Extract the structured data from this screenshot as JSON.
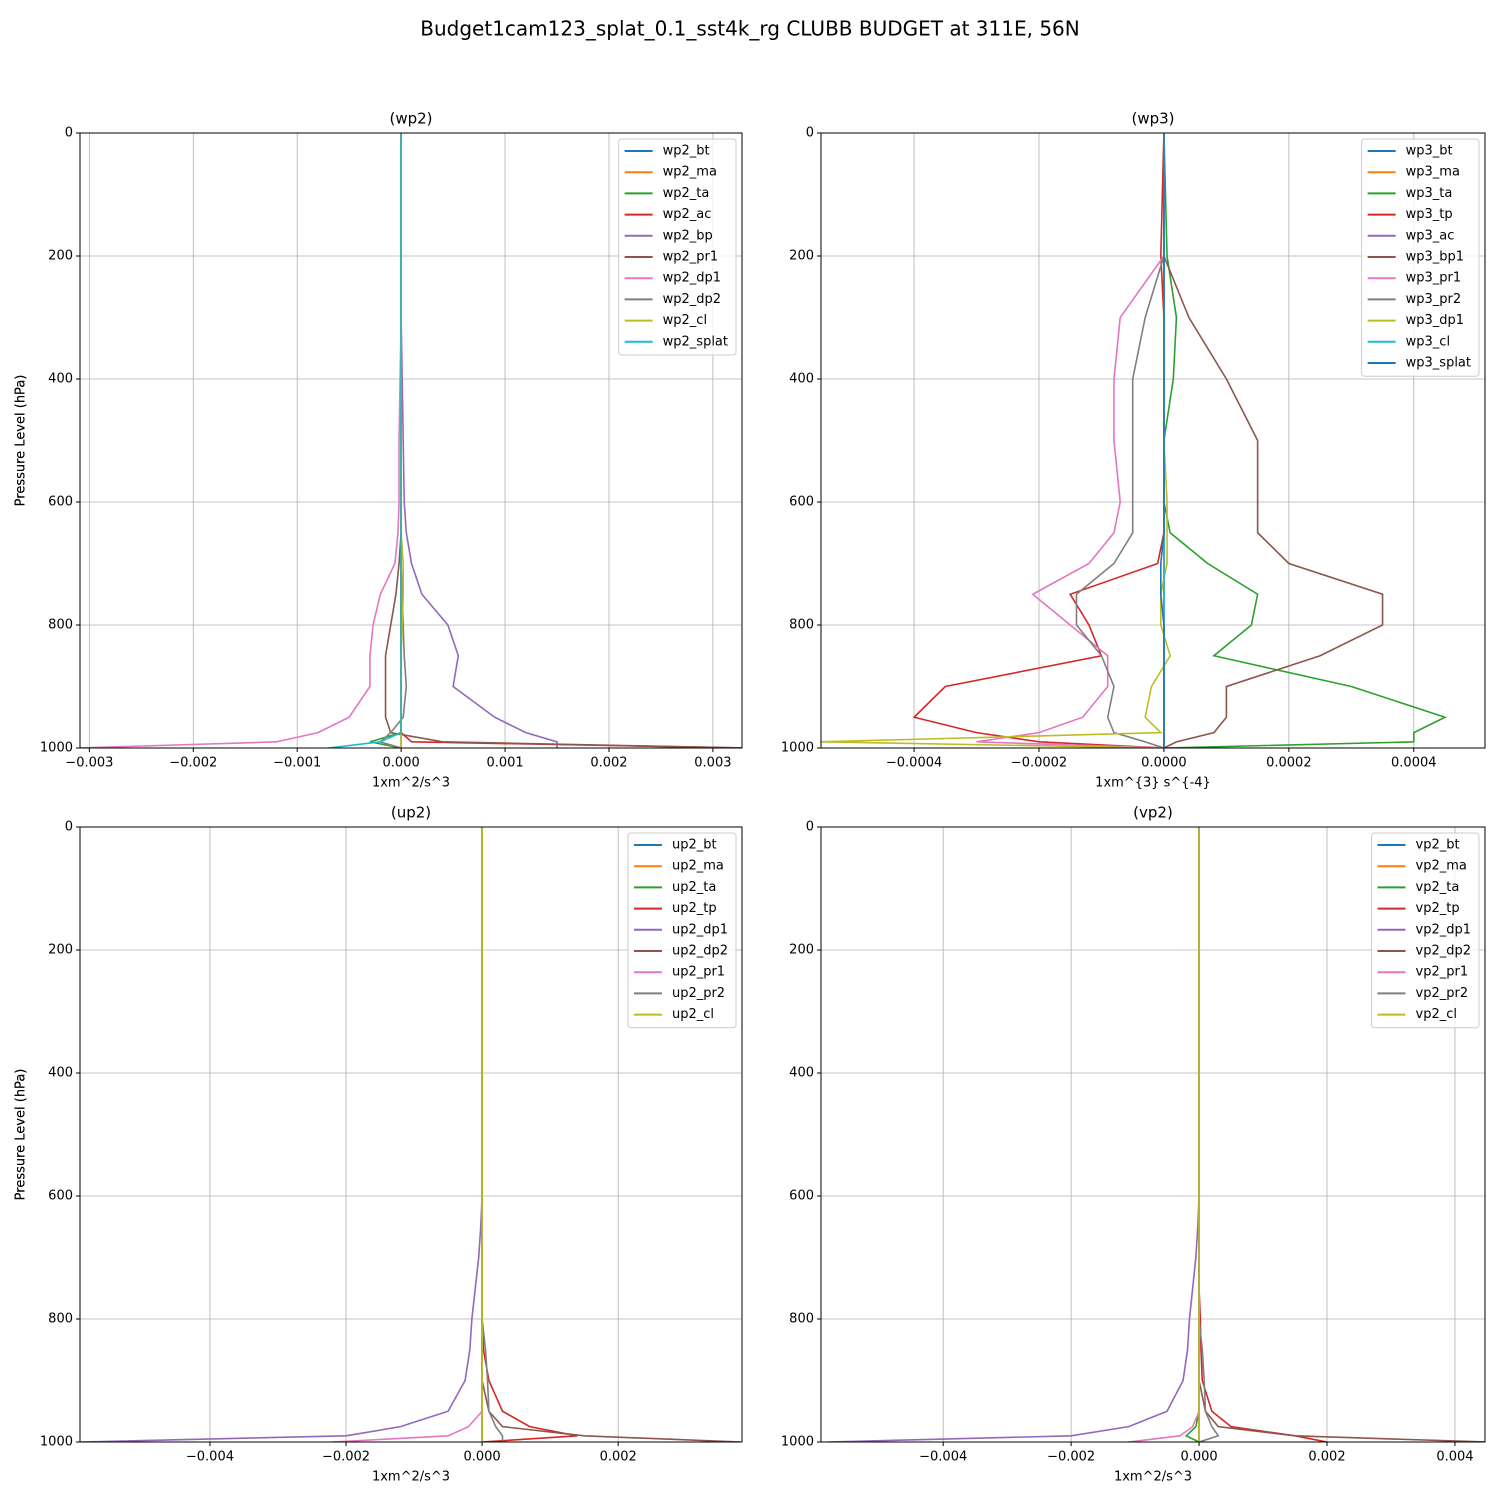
{
  "title": "Budget1cam123_splat_0.1_sst4k_rg CLUBB BUDGET at 311E, 56N",
  "chart_data": [
    {
      "type": "line",
      "title": "(wp2)",
      "xlabel": "1xm^2/s^3",
      "ylabel": "Pressure Level (hPa)",
      "grid": true,
      "legend": "upper right",
      "xlim": [
        -0.00309,
        0.00328
      ],
      "ylim": [
        1000,
        0
      ],
      "xticks": [
        {
          "value": -0.003,
          "label": "−0.003"
        },
        {
          "value": -0.002,
          "label": "−0.002"
        },
        {
          "value": -0.001,
          "label": "−0.001"
        },
        {
          "value": 0,
          "label": "0.000"
        },
        {
          "value": 0.001,
          "label": "0.001"
        },
        {
          "value": 0.002,
          "label": "0.002"
        },
        {
          "value": 0.003,
          "label": "0.003"
        }
      ],
      "yticks": [
        0,
        200,
        400,
        600,
        800,
        1000
      ],
      "y": [
        0,
        200,
        300,
        400,
        500,
        600,
        650,
        700,
        750,
        800,
        850,
        900,
        950,
        975,
        990,
        1000
      ],
      "series": [
        {
          "name": "wp2_bt",
          "color": "#1f77b4",
          "values": [
            0,
            0,
            0,
            0,
            0,
            0,
            0,
            0,
            0,
            0,
            0,
            0,
            0,
            0,
            0,
            0
          ]
        },
        {
          "name": "wp2_ma",
          "color": "#ff7f0e",
          "values": [
            0,
            0,
            0,
            0,
            0,
            0,
            0,
            0,
            0,
            0,
            0,
            0,
            0,
            0,
            0,
            0
          ]
        },
        {
          "name": "wp2_ta",
          "color": "#2ca02c",
          "values": [
            0,
            0,
            0,
            0,
            0,
            0,
            0,
            0,
            0,
            0,
            0,
            0,
            0,
            0,
            -0.0003,
            0
          ]
        },
        {
          "name": "wp2_ac",
          "color": "#d62728",
          "values": [
            0,
            0,
            0,
            0,
            0,
            0,
            0,
            0,
            0,
            0,
            0,
            0,
            0,
            0,
            0.0001,
            0.0033
          ]
        },
        {
          "name": "wp2_bp",
          "color": "#9467bd",
          "values": [
            0,
            0,
            0,
            1e-05,
            2e-05,
            3e-05,
            5e-05,
            0.0001,
            0.0002,
            0.00045,
            0.00055,
            0.0005,
            0.0009,
            0.0012,
            0.0015,
            0.0015
          ]
        },
        {
          "name": "wp2_pr1",
          "color": "#8c564b",
          "values": [
            0,
            0,
            0,
            0,
            0,
            0,
            0,
            -2e-05,
            -5e-05,
            -0.0001,
            -0.00015,
            -0.00015,
            -0.00015,
            -0.0001,
            0.0004,
            0.0033
          ]
        },
        {
          "name": "wp2_dp1",
          "color": "#e377c2",
          "values": [
            0,
            0,
            0,
            -1e-05,
            -2e-05,
            -2e-05,
            -3e-05,
            -6e-05,
            -0.0002,
            -0.00027,
            -0.0003,
            -0.0003,
            -0.0005,
            -0.0008,
            -0.0012,
            -0.0031
          ]
        },
        {
          "name": "wp2_dp2",
          "color": "#7f7f7f",
          "values": [
            0,
            0,
            0,
            0,
            0,
            0,
            0,
            0,
            1e-05,
            2e-05,
            3e-05,
            5e-05,
            2e-05,
            -0.0001,
            -0.0002,
            0
          ]
        },
        {
          "name": "wp2_cl",
          "color": "#bcbd22",
          "values": [
            0,
            0,
            0,
            0,
            0,
            0,
            0,
            2e-05,
            2e-05,
            1e-05,
            0,
            0,
            0,
            0,
            0,
            0
          ]
        },
        {
          "name": "wp2_splat",
          "color": "#17becf",
          "values": [
            0,
            0,
            0,
            0,
            0,
            0,
            0,
            0,
            0,
            0,
            0,
            0,
            0,
            0,
            -0.0002,
            -0.0007
          ]
        }
      ]
    },
    {
      "type": "line",
      "title": "(wp3)",
      "xlabel": "1xm^{3} s^{-4}",
      "ylabel": "Pressure Level (hPa)",
      "grid": true,
      "legend": "upper right",
      "xlim": [
        -0.000549,
        0.000514
      ],
      "ylim": [
        1000,
        0
      ],
      "xticks": [
        {
          "value": -0.0004,
          "label": "−0.0004"
        },
        {
          "value": -0.0002,
          "label": "−0.0002"
        },
        {
          "value": 0,
          "label": "0.0000"
        },
        {
          "value": 0.0002,
          "label": "0.0002"
        },
        {
          "value": 0.0004,
          "label": "0.0004"
        }
      ],
      "yticks": [
        0,
        200,
        400,
        600,
        800,
        1000
      ],
      "y": [
        0,
        200,
        300,
        400,
        500,
        600,
        650,
        700,
        750,
        800,
        850,
        900,
        950,
        975,
        990,
        1000
      ],
      "series": [
        {
          "name": "wp3_bt",
          "color": "#1f77b4",
          "values": [
            0,
            0,
            0,
            0,
            0,
            0,
            0,
            0,
            0,
            0,
            0,
            0,
            0,
            0,
            0,
            0
          ]
        },
        {
          "name": "wp3_ma",
          "color": "#ff7f0e",
          "values": [
            0,
            0,
            0,
            0,
            0,
            0,
            0,
            0,
            0,
            0,
            0,
            0,
            0,
            0,
            0,
            0
          ]
        },
        {
          "name": "wp3_ta",
          "color": "#2ca02c",
          "values": [
            0,
            5e-06,
            2e-05,
            1.5e-05,
            0,
            0,
            1e-05,
            7e-05,
            0.00015,
            0.00014,
            8e-05,
            0.0003,
            0.00045,
            0.0004,
            0.0004,
            0
          ]
        },
        {
          "name": "wp3_tp",
          "color": "#d62728",
          "values": [
            0,
            -5e-06,
            0,
            0,
            0,
            0,
            0,
            -1e-05,
            -0.00015,
            -0.00012,
            -0.0001,
            -0.00035,
            -0.0004,
            -0.0003,
            -0.0002,
            0
          ]
        },
        {
          "name": "wp3_ac",
          "color": "#9467bd",
          "values": [
            0,
            0,
            0,
            0,
            0,
            0,
            0,
            0,
            0,
            0,
            0,
            0,
            0,
            0,
            0,
            0
          ]
        },
        {
          "name": "wp3_bp1",
          "color": "#8c564b",
          "values": [
            0,
            0,
            4e-05,
            0.0001,
            0.00015,
            0.00015,
            0.00015,
            0.0002,
            0.00035,
            0.00035,
            0.00025,
            0.0001,
            0.0001,
            8e-05,
            2e-05,
            0
          ]
        },
        {
          "name": "wp3_pr1",
          "color": "#e377c2",
          "values": [
            0,
            0,
            -7e-05,
            -8e-05,
            -8e-05,
            -7e-05,
            -8e-05,
            -0.00012,
            -0.00021,
            -0.00015,
            -9e-05,
            -9e-05,
            -0.00013,
            -0.0002,
            -0.0003,
            0
          ]
        },
        {
          "name": "wp3_pr2",
          "color": "#7f7f7f",
          "values": [
            0,
            0,
            -3e-05,
            -5e-05,
            -5e-05,
            -5e-05,
            -5e-05,
            -8e-05,
            -0.00014,
            -0.00014,
            -0.0001,
            -8e-05,
            -9e-05,
            -8e-05,
            -3e-05,
            0
          ]
        },
        {
          "name": "wp3_dp1",
          "color": "#bcbd22",
          "values": [
            0,
            0,
            0,
            0,
            0,
            5e-06,
            5e-06,
            5e-06,
            -5e-06,
            -5e-06,
            1e-05,
            -2e-05,
            -3e-05,
            -5e-06,
            -0.00055,
            0
          ]
        },
        {
          "name": "wp3_cl",
          "color": "#17becf",
          "values": [
            0,
            0,
            0,
            0,
            0,
            0,
            0,
            0,
            0,
            0,
            0,
            0,
            0,
            0,
            0,
            0
          ]
        },
        {
          "name": "wp3_splat",
          "color": "#1f77b4",
          "values": [
            0,
            0,
            0,
            0,
            0,
            0,
            0,
            -5e-06,
            -5e-06,
            0,
            0,
            0,
            0,
            0,
            0,
            0
          ]
        }
      ]
    },
    {
      "type": "line",
      "title": "(up2)",
      "xlabel": "1xm^2/s^3",
      "ylabel": "Pressure Level (hPa)",
      "grid": true,
      "legend": "upper right",
      "xlim": [
        -0.00591,
        0.00382
      ],
      "ylim": [
        1000,
        0
      ],
      "xticks": [
        {
          "value": -0.004,
          "label": "−0.004"
        },
        {
          "value": -0.002,
          "label": "−0.002"
        },
        {
          "value": 0,
          "label": "0.000"
        },
        {
          "value": 0.002,
          "label": "0.002"
        }
      ],
      "yticks": [
        0,
        200,
        400,
        600,
        800,
        1000
      ],
      "y": [
        0,
        200,
        300,
        400,
        500,
        600,
        650,
        700,
        750,
        800,
        850,
        900,
        950,
        975,
        990,
        1000
      ],
      "series": [
        {
          "name": "up2_bt",
          "color": "#1f77b4",
          "values": [
            0,
            0,
            0,
            0,
            0,
            0,
            0,
            0,
            0,
            0,
            0,
            0,
            0,
            0,
            0,
            0
          ]
        },
        {
          "name": "up2_ma",
          "color": "#ff7f0e",
          "values": [
            0,
            0,
            0,
            0,
            0,
            0,
            0,
            0,
            0,
            0,
            0,
            0,
            0,
            0,
            0,
            0
          ]
        },
        {
          "name": "up2_ta",
          "color": "#2ca02c",
          "values": [
            0,
            0,
            0,
            0,
            0,
            0,
            0,
            0,
            0,
            0,
            0,
            0,
            0,
            0,
            0,
            0
          ]
        },
        {
          "name": "up2_tp",
          "color": "#d62728",
          "values": [
            0,
            0,
            0,
            0,
            0,
            0,
            0,
            0,
            0,
            0,
            2e-05,
            0.0001,
            0.0003,
            0.0007,
            0.0014,
            0
          ]
        },
        {
          "name": "up2_dp1",
          "color": "#9467bd",
          "values": [
            0,
            0,
            0,
            0,
            0,
            0,
            -2e-05,
            -5e-05,
            -0.0001,
            -0.00015,
            -0.00018,
            -0.00025,
            -0.0005,
            -0.0012,
            -0.002,
            -0.0059
          ]
        },
        {
          "name": "up2_dp2",
          "color": "#8c564b",
          "values": [
            0,
            0,
            0,
            0,
            0,
            0,
            0,
            0,
            0,
            0,
            0,
            0,
            0.0001,
            0.0003,
            0.0015,
            0.0038
          ]
        },
        {
          "name": "up2_pr1",
          "color": "#e377c2",
          "values": [
            0,
            0,
            0,
            0,
            0,
            0,
            0,
            0,
            0,
            0,
            0,
            0,
            0,
            -0.0002,
            -0.0005,
            -0.0022
          ]
        },
        {
          "name": "up2_pr2",
          "color": "#7f7f7f",
          "values": [
            0,
            0,
            0,
            0,
            0,
            0,
            0,
            0,
            0,
            0,
            5e-05,
            8e-05,
            0.0001,
            0.0002,
            0.0003,
            0.0003
          ]
        },
        {
          "name": "up2_cl",
          "color": "#bcbd22",
          "values": [
            0,
            0,
            0,
            0,
            0,
            0,
            0,
            0,
            0,
            0,
            0,
            0,
            0,
            0,
            0,
            0
          ]
        }
      ]
    },
    {
      "type": "line",
      "title": "(vp2)",
      "xlabel": "1xm^2/s^3",
      "ylabel": "Pressure Level (hPa)",
      "grid": true,
      "legend": "upper right",
      "xlim": [
        -0.00591,
        0.00447
      ],
      "ylim": [
        1000,
        0
      ],
      "xticks": [
        {
          "value": -0.004,
          "label": "−0.004"
        },
        {
          "value": -0.002,
          "label": "−0.002"
        },
        {
          "value": 0,
          "label": "0.000"
        },
        {
          "value": 0.002,
          "label": "0.002"
        },
        {
          "value": 0.004,
          "label": "0.004"
        }
      ],
      "yticks": [
        0,
        200,
        400,
        600,
        800,
        1000
      ],
      "y": [
        0,
        200,
        300,
        400,
        500,
        600,
        650,
        700,
        750,
        800,
        850,
        900,
        950,
        975,
        990,
        1000
      ],
      "series": [
        {
          "name": "vp2_bt",
          "color": "#1f77b4",
          "values": [
            0,
            0,
            0,
            0,
            0,
            0,
            0,
            0,
            0,
            0,
            0,
            0,
            0,
            0,
            0,
            0
          ]
        },
        {
          "name": "vp2_ma",
          "color": "#ff7f0e",
          "values": [
            0,
            0,
            0,
            0,
            0,
            0,
            0,
            0,
            0,
            0,
            0,
            0,
            0,
            0,
            0,
            0
          ]
        },
        {
          "name": "vp2_ta",
          "color": "#2ca02c",
          "values": [
            0,
            0,
            0,
            0,
            0,
            0,
            0,
            0,
            0,
            0,
            0,
            0,
            0,
            -5e-05,
            -0.0002,
            0
          ]
        },
        {
          "name": "vp2_tp",
          "color": "#d62728",
          "values": [
            0,
            0,
            0,
            0,
            0,
            0,
            0,
            0,
            0,
            2e-05,
            3e-05,
            5e-05,
            0.0002,
            0.0005,
            0.0015,
            0.002
          ]
        },
        {
          "name": "vp2_dp1",
          "color": "#9467bd",
          "values": [
            0,
            0,
            0,
            0,
            0,
            0,
            -2e-05,
            -5e-05,
            -0.0001,
            -0.00015,
            -0.00018,
            -0.00025,
            -0.0005,
            -0.0011,
            -0.002,
            -0.0058
          ]
        },
        {
          "name": "vp2_dp2",
          "color": "#8c564b",
          "values": [
            0,
            0,
            0,
            0,
            0,
            0,
            0,
            0,
            0,
            0,
            0,
            0,
            0.0001,
            0.0003,
            0.0015,
            0.0045
          ]
        },
        {
          "name": "vp2_pr1",
          "color": "#e377c2",
          "values": [
            0,
            0,
            0,
            0,
            0,
            0,
            0,
            0,
            0,
            0,
            0,
            0,
            0,
            -0.0001,
            -0.0003,
            -0.0011
          ]
        },
        {
          "name": "vp2_pr2",
          "color": "#7f7f7f",
          "values": [
            0,
            0,
            0,
            0,
            0,
            0,
            0,
            0,
            0,
            0,
            5e-05,
            8e-05,
            0.0001,
            0.0002,
            0.0003,
            0
          ]
        },
        {
          "name": "vp2_cl",
          "color": "#bcbd22",
          "values": [
            0,
            0,
            0,
            0,
            0,
            0,
            0,
            0,
            0,
            0,
            0,
            0,
            0,
            0,
            0,
            0
          ]
        }
      ]
    }
  ]
}
